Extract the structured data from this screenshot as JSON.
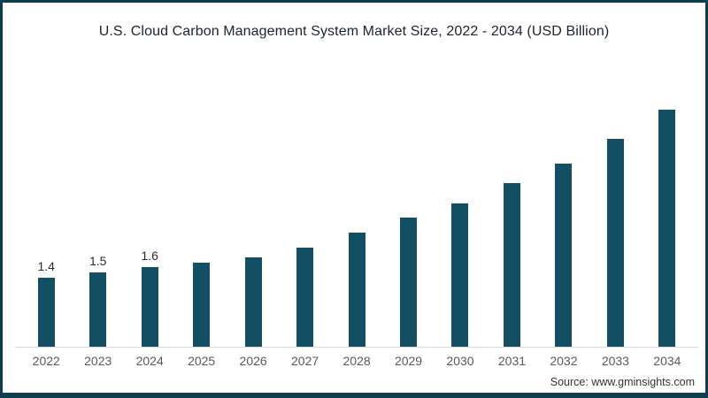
{
  "title": "U.S. Cloud Carbon Management System Market Size, 2022 - 2034 (USD Billion)",
  "source": "Source: www.gminsights.com",
  "colors": {
    "frame_border": "#0d3e4f",
    "background": "#ffffff",
    "bar": "#134f63",
    "axis_line": "#d9d9d9",
    "title_text": "#1c2430",
    "tick_text": "#595959",
    "value_label_text": "#2b2b2b"
  },
  "chart_data": {
    "type": "bar",
    "title": "U.S. Cloud Carbon Management System Market Size, 2022 - 2034 (USD Billion)",
    "unit": "USD Billion",
    "categories": [
      "2022",
      "2023",
      "2024",
      "2025",
      "2026",
      "2027",
      "2028",
      "2029",
      "2030",
      "2031",
      "2032",
      "2033",
      "2034"
    ],
    "values": [
      1.4,
      1.5,
      1.6,
      1.7,
      1.8,
      2.0,
      2.3,
      2.6,
      2.9,
      3.3,
      3.7,
      4.2,
      4.8
    ],
    "data_labels": [
      "1.4",
      "1.5",
      "1.6",
      "",
      "",
      "",
      "",
      "",
      "",
      "",
      "",
      "",
      ""
    ],
    "xlabel": "",
    "ylabel": "",
    "ylim": [
      0,
      5.2
    ],
    "grid": false,
    "legend": "none",
    "bar_color": "#134f63"
  }
}
